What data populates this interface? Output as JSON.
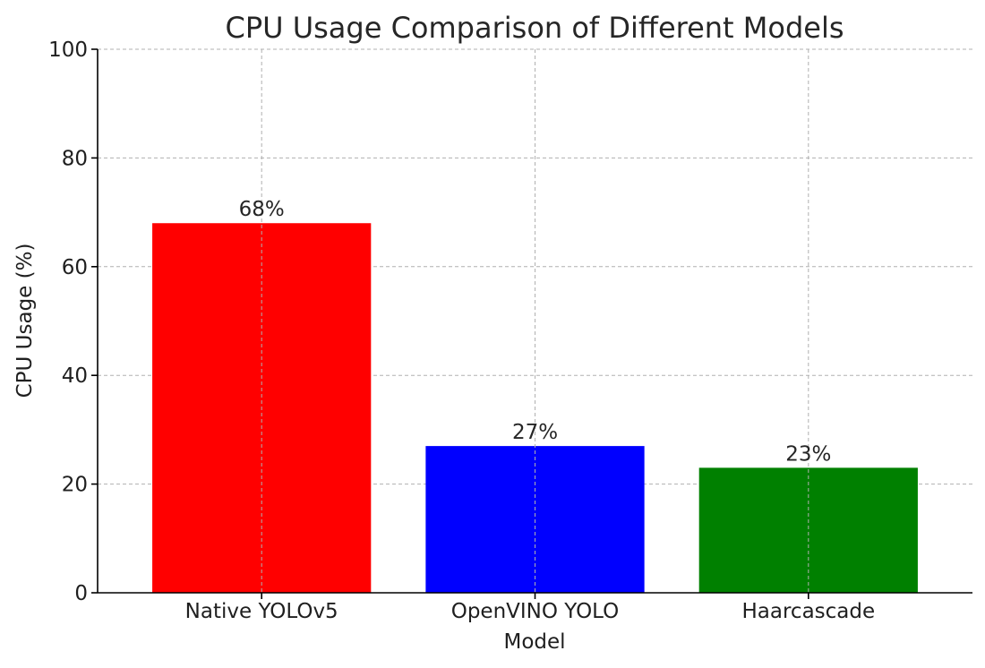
{
  "chart_data": {
    "type": "bar",
    "title": "CPU Usage Comparison of Different Models",
    "xlabel": "Model",
    "ylabel": "CPU Usage (%)",
    "categories": [
      "Native YOLOv5",
      "OpenVINO YOLO",
      "Haarcascade"
    ],
    "values": [
      68,
      27,
      23
    ],
    "value_labels": [
      "68%",
      "27%",
      "23%"
    ],
    "colors": [
      "#ff0000",
      "#0000ff",
      "#008000"
    ],
    "ylim": [
      0,
      100
    ],
    "yticks": [
      0,
      20,
      40,
      60,
      80,
      100
    ],
    "ytick_labels": [
      "0",
      "20",
      "40",
      "60",
      "80",
      "100"
    ],
    "grid": true,
    "legend": "none"
  }
}
